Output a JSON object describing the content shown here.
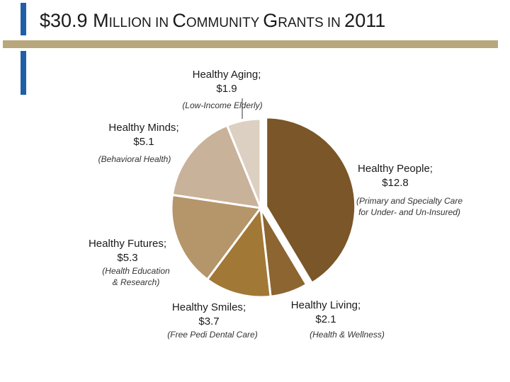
{
  "title": {
    "parts": [
      {
        "text": "$30.9 ",
        "sc": false
      },
      {
        "text": "M",
        "sc": false
      },
      {
        "text": "ILLION IN ",
        "sc": true
      },
      {
        "text": "C",
        "sc": false
      },
      {
        "text": "OMMUNITY ",
        "sc": true
      },
      {
        "text": "G",
        "sc": false
      },
      {
        "text": "RANTS IN ",
        "sc": true
      },
      {
        "text": "2011",
        "sc": false
      }
    ]
  },
  "colors": {
    "accent": "#1f5fa8",
    "rule": "#b8a77c"
  },
  "chart_data": {
    "type": "pie",
    "unit": "$ million",
    "slices": [
      {
        "label": "Healthy People",
        "value": 12.8,
        "value_label": "$12.8",
        "sublabel": "(Primary and Specialty Care\nfor Under- and Un-Insured)",
        "color": "#7a5628",
        "exploded": true
      },
      {
        "label": "Healthy Living",
        "value": 2.1,
        "value_label": "$2.1",
        "sublabel": "(Health & Wellness)",
        "color": "#8c6530",
        "exploded": false
      },
      {
        "label": "Healthy Smiles",
        "value": 3.7,
        "value_label": "$3.7",
        "sublabel": "(Free Pedi Dental Care)",
        "color": "#a27837",
        "exploded": false
      },
      {
        "label": "Healthy Futures",
        "value": 5.3,
        "value_label": "$5.3",
        "sublabel": "(Health Education\n& Research)",
        "color": "#b5956a",
        "exploded": false
      },
      {
        "label": "Healthy Minds",
        "value": 5.1,
        "value_label": "$5.1",
        "sublabel": "(Behavioral Health)",
        "color": "#c9b29a",
        "exploded": false
      },
      {
        "label": "Healthy Aging",
        "value": 1.9,
        "value_label": "$1.9",
        "sublabel": "(Low-Income Elderly)",
        "color": "#dcd0c2",
        "exploded": false
      }
    ]
  }
}
